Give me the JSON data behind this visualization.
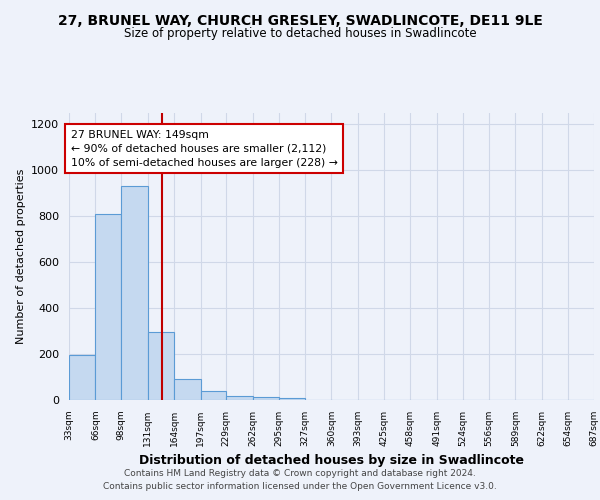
{
  "title1": "27, BRUNEL WAY, CHURCH GRESLEY, SWADLINCOTE, DE11 9LE",
  "title2": "Size of property relative to detached houses in Swadlincote",
  "xlabel": "Distribution of detached houses by size in Swadlincote",
  "ylabel": "Number of detached properties",
  "bin_labels": [
    "33sqm",
    "66sqm",
    "98sqm",
    "131sqm",
    "164sqm",
    "197sqm",
    "229sqm",
    "262sqm",
    "295sqm",
    "327sqm",
    "360sqm",
    "393sqm",
    "425sqm",
    "458sqm",
    "491sqm",
    "524sqm",
    "556sqm",
    "589sqm",
    "622sqm",
    "654sqm",
    "687sqm"
  ],
  "bin_edges": [
    33,
    66,
    98,
    131,
    164,
    197,
    229,
    262,
    295,
    327,
    360,
    393,
    425,
    458,
    491,
    524,
    556,
    589,
    622,
    654,
    687
  ],
  "bar_heights": [
    195,
    810,
    930,
    295,
    90,
    38,
    18,
    12,
    8,
    0,
    0,
    0,
    0,
    0,
    0,
    0,
    0,
    0,
    0,
    0
  ],
  "bar_color": "#c5d9f0",
  "bar_edgecolor": "#5b9bd5",
  "vline_x": 149,
  "vline_color": "#c00000",
  "annotation_text": "27 BRUNEL WAY: 149sqm\n← 90% of detached houses are smaller (2,112)\n10% of semi-detached houses are larger (228) →",
  "ylim": [
    0,
    1250
  ],
  "yticks": [
    0,
    200,
    400,
    600,
    800,
    1000,
    1200
  ],
  "background_color": "#eef2fa",
  "grid_color": "#d0d8e8",
  "footer": "Contains HM Land Registry data © Crown copyright and database right 2024.\nContains public sector information licensed under the Open Government Licence v3.0."
}
